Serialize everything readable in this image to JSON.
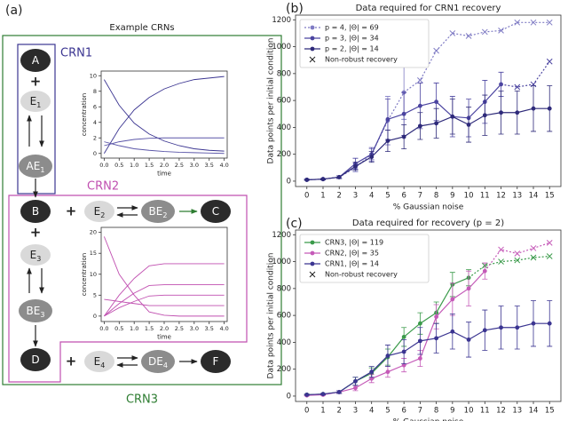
{
  "panel_labels": [
    "(a)",
    "(b)",
    "(c)"
  ],
  "diagram": {
    "title": "Example CRNs",
    "groups": [
      "CRN1",
      "CRN2",
      "CRN3"
    ],
    "plus": "+",
    "nodes": [
      {
        "label": "A"
      },
      {
        "label": "E",
        "subscript": "1"
      },
      {
        "label": "AE",
        "subscript": "1"
      },
      {
        "label": "B"
      },
      {
        "label": "E",
        "subscript": "2"
      },
      {
        "label": "BE",
        "subscript": "2"
      },
      {
        "label": "C"
      },
      {
        "label": "E",
        "subscript": "3"
      },
      {
        "label": "BE",
        "subscript": "3"
      },
      {
        "label": "D"
      },
      {
        "label": "E",
        "subscript": "4"
      },
      {
        "label": "DE",
        "subscript": "4"
      },
      {
        "label": "F"
      }
    ]
  },
  "chart_data": [
    {
      "type": "line",
      "xlabel": "time",
      "ylabel": "concentration",
      "x": [
        0,
        0.5,
        1,
        1.5,
        2,
        2.5,
        3,
        3.5,
        4
      ],
      "xlim": [
        -0.1,
        4.1
      ],
      "ylim": [
        -0.6,
        10.6
      ],
      "xticks": [
        {
          "value": 0,
          "label": "0.0"
        },
        {
          "value": 0.5,
          "label": "0.5"
        },
        {
          "value": 1,
          "label": "1.0"
        },
        {
          "value": 1.5,
          "label": "1.5"
        },
        {
          "value": 2,
          "label": "2.0"
        },
        {
          "value": 2.5,
          "label": "2.5"
        },
        {
          "value": 3,
          "label": "3.0"
        },
        {
          "value": 3.5,
          "label": "3.5"
        },
        {
          "value": 4,
          "label": "4.0"
        }
      ],
      "yticks": [
        0,
        2,
        4,
        6,
        8,
        10
      ],
      "series": [
        {
          "color": "#3b3591",
          "values": [
            0,
            3.2,
            5.6,
            7.2,
            8.3,
            9.0,
            9.5,
            9.7,
            9.9
          ]
        },
        {
          "color": "#3b3591",
          "values": [
            9.5,
            6.2,
            3.9,
            2.5,
            1.6,
            1.0,
            0.6,
            0.4,
            0.3
          ]
        },
        {
          "color": "#5a55a8",
          "values": [
            1,
            1.5,
            1.8,
            1.95,
            2,
            2,
            2,
            2,
            2
          ]
        },
        {
          "color": "#5a55a8",
          "values": [
            1.5,
            1.0,
            0.6,
            0.4,
            0.25,
            0.15,
            0.1,
            0.05,
            0
          ]
        }
      ]
    },
    {
      "type": "line",
      "xlabel": "time",
      "ylabel": "concentration",
      "x": [
        0,
        0.5,
        1,
        1.5,
        2,
        2.5,
        3,
        3.5,
        4
      ],
      "xlim": [
        -0.1,
        4.1
      ],
      "ylim": [
        -1.3,
        21.2
      ],
      "xticks": [
        {
          "value": 0,
          "label": "0.0"
        },
        {
          "value": 0.5,
          "label": "0.5"
        },
        {
          "value": 1,
          "label": "1.0"
        },
        {
          "value": 1.5,
          "label": "1.5"
        },
        {
          "value": 2,
          "label": "2.0"
        },
        {
          "value": 2.5,
          "label": "2.5"
        },
        {
          "value": 3,
          "label": "3.0"
        },
        {
          "value": 3.5,
          "label": "3.5"
        },
        {
          "value": 4,
          "label": "4.0"
        }
      ],
      "yticks": [
        0,
        5,
        10,
        15,
        20
      ],
      "series": [
        {
          "color": "#c04fb0",
          "values": [
            19,
            10,
            5,
            1,
            0.2,
            0,
            0,
            0,
            0
          ]
        },
        {
          "color": "#c04fb0",
          "values": [
            0,
            5,
            9,
            12,
            12.5,
            12.5,
            12.5,
            12.5,
            12.5
          ]
        },
        {
          "color": "#c04fb0",
          "values": [
            0,
            3,
            5.5,
            7.3,
            7.5,
            7.5,
            7.5,
            7.5,
            7.5
          ]
        },
        {
          "color": "#c04fb0",
          "values": [
            4,
            3.5,
            3,
            2.5,
            2.5,
            2.5,
            2.5,
            2.5,
            2.5
          ]
        },
        {
          "color": "#c04fb0",
          "values": [
            0,
            2,
            3.5,
            4.8,
            5,
            5,
            5,
            5,
            5
          ]
        }
      ]
    },
    {
      "type": "line",
      "title": "Data required for CRN1 recovery",
      "xlabel": "% Gaussian noise",
      "ylabel": "Data points per initial condition",
      "x": [
        0,
        1,
        2,
        3,
        4,
        5,
        6,
        7,
        8,
        9,
        10,
        11,
        12,
        13,
        14,
        15
      ],
      "xlim": [
        -0.7,
        15.7
      ],
      "ylim": [
        -40,
        1235
      ],
      "xticks": [
        0,
        1,
        2,
        3,
        4,
        5,
        6,
        7,
        8,
        9,
        10,
        11,
        12,
        13,
        14,
        15
      ],
      "yticks": [
        0,
        200,
        400,
        600,
        800,
        1000,
        1200
      ],
      "legend": "upper left",
      "nonrobust_label": "Non-robust recovery",
      "nonrobust_color": "#222222",
      "series": [
        {
          "name": "p = 4, |Θ| = 69",
          "color": "#7f7bc4",
          "linestyle": "dotted",
          "values": [
            10,
            15,
            30,
            100,
            200,
            450,
            660,
            750,
            970,
            1100,
            1080,
            1110,
            1120,
            1180,
            1180,
            1180
          ],
          "errors": [
            4,
            5,
            10,
            30,
            40,
            180,
            200,
            null,
            null,
            null,
            null,
            null,
            null,
            null,
            null,
            null
          ],
          "robust": [
            true,
            true,
            true,
            true,
            true,
            true,
            true,
            false,
            false,
            false,
            false,
            false,
            false,
            false,
            false,
            false
          ]
        },
        {
          "name": "p = 3, |Θ| = 34",
          "color": "#4b44a0",
          "linestyle": "solid",
          "values": [
            10,
            15,
            30,
            130,
            200,
            460,
            500,
            560,
            590,
            480,
            470,
            590,
            720,
            700,
            720,
            890
          ],
          "errors": [
            4,
            5,
            10,
            40,
            50,
            150,
            160,
            170,
            140,
            150,
            140,
            160,
            90,
            null,
            null,
            null
          ],
          "robust": [
            true,
            true,
            true,
            true,
            true,
            true,
            true,
            true,
            true,
            true,
            true,
            true,
            true,
            false,
            false,
            false
          ]
        },
        {
          "name": "p = 2, |Θ| = 14",
          "color": "#2e2a7a",
          "linestyle": "solid",
          "values": [
            10,
            15,
            30,
            110,
            180,
            300,
            330,
            410,
            430,
            480,
            420,
            490,
            510,
            510,
            540,
            540
          ],
          "errors": [
            4,
            5,
            10,
            30,
            40,
            80,
            90,
            100,
            110,
            130,
            130,
            150,
            160,
            160,
            170,
            170
          ],
          "robust": [
            true,
            true,
            true,
            true,
            true,
            true,
            true,
            true,
            true,
            true,
            true,
            true,
            true,
            true,
            true,
            true
          ]
        }
      ]
    },
    {
      "type": "line",
      "title": "Data required for recovery (p = 2)",
      "xlabel": "% Gaussian noise",
      "ylabel": "Data points per initial condition",
      "x": [
        0,
        1,
        2,
        3,
        4,
        5,
        6,
        7,
        8,
        9,
        10,
        11,
        12,
        13,
        14,
        15
      ],
      "xlim": [
        -0.7,
        15.7
      ],
      "ylim": [
        -40,
        1235
      ],
      "xticks": [
        0,
        1,
        2,
        3,
        4,
        5,
        6,
        7,
        8,
        9,
        10,
        11,
        12,
        13,
        14,
        15
      ],
      "yticks": [
        0,
        200,
        400,
        600,
        800,
        1000,
        1200
      ],
      "legend": "upper left",
      "nonrobust_label": "Non-robust recovery",
      "nonrobust_color": "#222222",
      "series": [
        {
          "name": "CRN3, |Θ| = 119",
          "color": "#3a9a4a",
          "linestyle": "solid",
          "values": [
            10,
            15,
            30,
            110,
            170,
            290,
            440,
            540,
            620,
            830,
            880,
            970,
            1000,
            1010,
            1030,
            1040
          ],
          "errors": [
            4,
            5,
            10,
            30,
            40,
            60,
            70,
            80,
            80,
            90,
            60,
            null,
            null,
            null,
            null,
            null
          ],
          "robust": [
            true,
            true,
            true,
            true,
            true,
            true,
            true,
            true,
            true,
            true,
            true,
            false,
            false,
            false,
            false,
            false
          ]
        },
        {
          "name": "CRN2, |Θ| = 35",
          "color": "#c55ab8",
          "linestyle": "solid",
          "values": [
            5,
            10,
            30,
            60,
            130,
            180,
            230,
            280,
            590,
            720,
            800,
            930,
            1090,
            1060,
            1100,
            1140
          ],
          "errors": [
            4,
            5,
            10,
            20,
            30,
            40,
            50,
            60,
            90,
            120,
            130,
            60,
            null,
            null,
            null,
            null
          ],
          "robust": [
            true,
            true,
            true,
            true,
            true,
            true,
            true,
            true,
            true,
            true,
            true,
            true,
            false,
            false,
            false,
            false
          ]
        },
        {
          "name": "CRN1, |Θ| = 14",
          "color": "#3b3591",
          "linestyle": "solid",
          "values": [
            10,
            15,
            30,
            110,
            180,
            300,
            330,
            410,
            430,
            480,
            420,
            490,
            510,
            510,
            540,
            540
          ],
          "errors": [
            4,
            5,
            10,
            30,
            40,
            80,
            90,
            100,
            110,
            130,
            130,
            150,
            160,
            160,
            170,
            170
          ],
          "robust": [
            true,
            true,
            true,
            true,
            true,
            true,
            true,
            true,
            true,
            true,
            true,
            true,
            true,
            true,
            true,
            true
          ]
        }
      ]
    }
  ]
}
